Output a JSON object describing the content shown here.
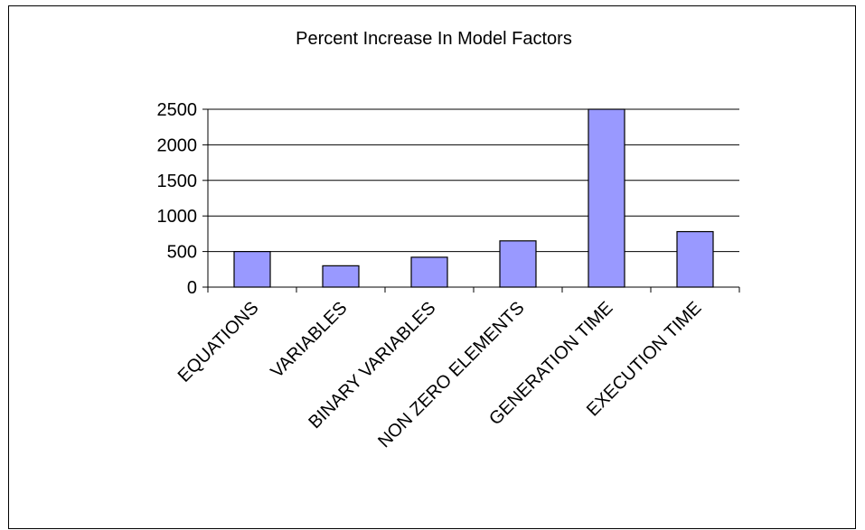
{
  "chart_data": {
    "type": "bar",
    "title": "Percent Increase In Model Factors",
    "xlabel": "",
    "ylabel": "",
    "categories": [
      "EQUATIONS",
      "VARIABLES",
      "BINARY VARIABLES",
      "NON ZERO ELEMENTS",
      "GENERATION TIME",
      "EXECUTION TIME"
    ],
    "values": [
      500,
      300,
      420,
      650,
      2500,
      780
    ],
    "ylim": [
      0,
      2500
    ],
    "yticks": [
      0,
      500,
      1000,
      1500,
      2000,
      2500
    ],
    "grid": true,
    "legend": "none",
    "bar_color": "#9999ff",
    "bar_edge_color": "#000000"
  }
}
